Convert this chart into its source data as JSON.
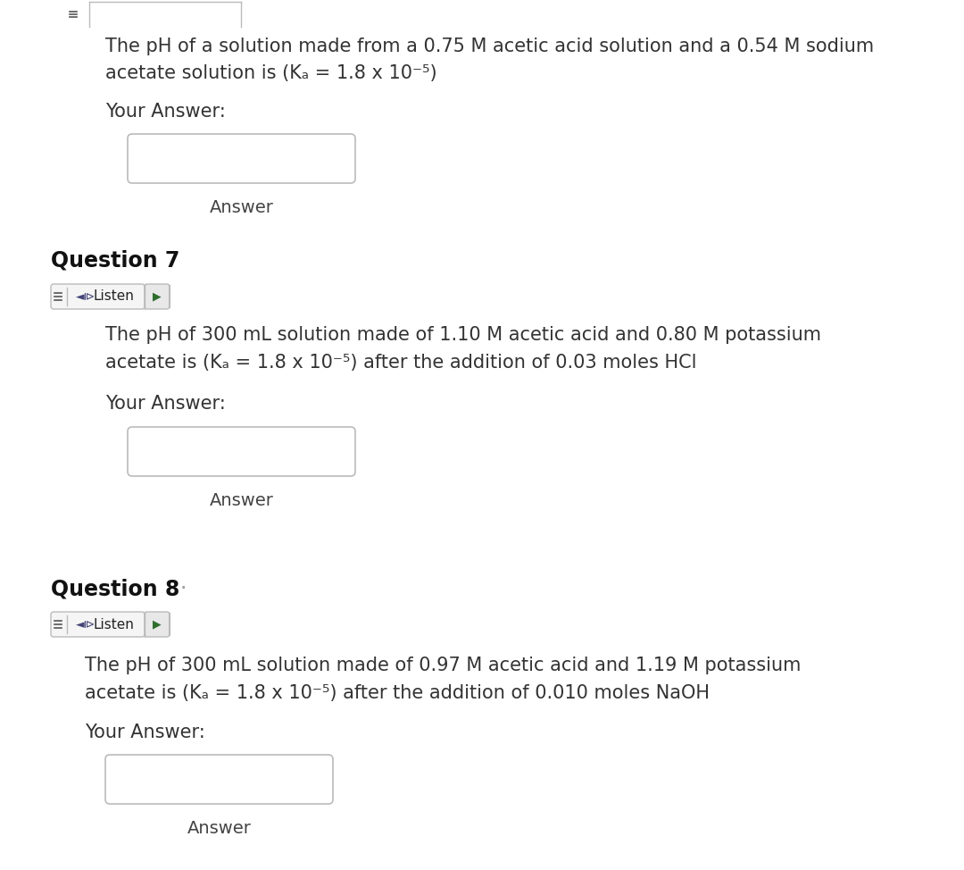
{
  "bg_color": "#ffffff",
  "text_color": "#333333",
  "q6_text_line1": "The pH of a solution made from a 0.75 M acetic acid solution and a 0.54 M sodium",
  "q6_text_line2": "acetate solution is (Kₐ = 1.8 x 10⁻⁵)",
  "q6_your_answer": "Your Answer:",
  "q6_answer_label": "Answer",
  "q7_label": "Question 7",
  "q7_text_line1": "The pH of 300 mL solution made of 1.10 M acetic acid and 0.80 M potassium",
  "q7_text_line2": "acetate is (Kₐ = 1.8 x 10⁻⁵) after the addition of 0.03 moles HCl",
  "q7_your_answer": "Your Answer:",
  "q7_answer_label": "Answer",
  "q8_label": "Question 8",
  "q8_text_line1": "The pH of 300 mL solution made of 0.97 M acetic acid and 1.19 M potassium",
  "q8_text_line2": "acetate is (Kₐ = 1.8 x 10⁻⁵) after the addition of 0.010 moles NaOH",
  "q8_your_answer": "Your Answer:",
  "q8_answer_label": "Answer",
  "listen_btn_bg": "#f5f5f5",
  "listen_btn_border": "#bbbbbb",
  "box_border_color": "#bbbbbb",
  "listen_icon_color": "#2d6e2d",
  "play_icon_color": "#2d6e2d",
  "label_color": "#444444"
}
